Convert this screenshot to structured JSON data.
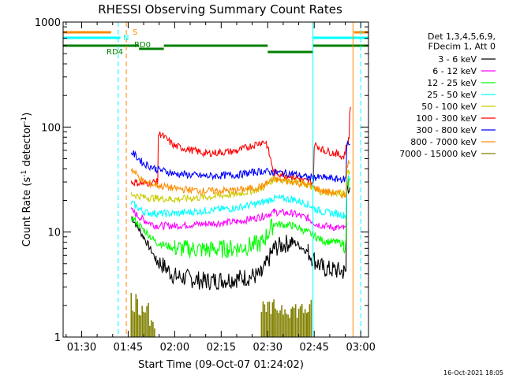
{
  "chart_data": {
    "type": "line",
    "title": "RHESSI Observing Summary Count Rates",
    "xlabel": "Start Time (09-Oct-07 01:24:02)",
    "ylabel_main": "Count Rate (s",
    "ylabel_sup1": "-1",
    "ylabel_mid": " detector",
    "ylabel_sup2": "-1",
    "ylabel_end": ")",
    "y_scale": "log",
    "ylim": [
      1,
      1000
    ],
    "xlim_minutes": [
      84.03,
      182.5
    ],
    "x_ticks": [
      {
        "m": 90,
        "label": "01:30"
      },
      {
        "m": 105,
        "label": "01:45"
      },
      {
        "m": 120,
        "label": "02:00"
      },
      {
        "m": 135,
        "label": "02:15"
      },
      {
        "m": 150,
        "label": "02:30"
      },
      {
        "m": 165,
        "label": "02:45"
      },
      {
        "m": 180,
        "label": "03:00"
      }
    ],
    "y_ticks": [
      {
        "v": 1,
        "label": "1"
      },
      {
        "v": 10,
        "label": "10"
      },
      {
        "v": 100,
        "label": "100"
      },
      {
        "v": 1000,
        "label": "1000"
      }
    ],
    "legend_header": [
      "Det 1,3,4,5,6,9,",
      "FDecim 1, Att 0"
    ],
    "legend_position": "right",
    "series": [
      {
        "name": "3 - 6 keV",
        "color": "#000000",
        "x": [
          106,
          110,
          114,
          120,
          130,
          140,
          148,
          152,
          158,
          163,
          165.5,
          168,
          172,
          174.5,
          176.5
        ],
        "y": [
          14,
          9,
          5.5,
          3.8,
          3.4,
          3.6,
          3.9,
          7,
          8.2,
          6.5,
          5.2,
          4.5,
          4.3,
          4.2,
          28
        ]
      },
      {
        "name": "6 - 12 keV",
        "color": "#ff00ff",
        "x": [
          106,
          110,
          114,
          120,
          130,
          140,
          148,
          152,
          158,
          163,
          165.5,
          168,
          172,
          174.5,
          176.5
        ],
        "y": [
          16,
          13,
          11.5,
          11.5,
          12,
          12.5,
          14,
          15.5,
          15,
          13.5,
          12,
          11.5,
          11,
          10.8,
          30
        ]
      },
      {
        "name": "12 - 25 keV",
        "color": "#00ff00",
        "x": [
          106,
          110,
          114,
          120,
          130,
          140,
          148,
          152,
          158,
          163,
          165.5,
          168,
          172,
          174.5,
          176.5
        ],
        "y": [
          14,
          10.5,
          8,
          7,
          6.8,
          7,
          7.8,
          12,
          11.5,
          10,
          9,
          8.2,
          8,
          7.8,
          28
        ]
      },
      {
        "name": "25 - 50 keV",
        "color": "#00ffff",
        "x": [
          106,
          110,
          114,
          120,
          130,
          140,
          148,
          152,
          158,
          163,
          165.5,
          168,
          172,
          174.5,
          176.5
        ],
        "y": [
          19,
          15.5,
          15,
          15,
          16,
          17,
          19,
          21,
          20.5,
          18.5,
          16.5,
          15.5,
          15,
          14.5,
          32
        ]
      },
      {
        "name": "50 - 100 keV",
        "color": "#cccc00",
        "x": [
          106,
          110,
          114,
          120,
          130,
          140,
          148,
          152,
          158,
          163,
          165.5,
          168,
          172,
          174.5,
          176.5
        ],
        "y": [
          23,
          21.5,
          21,
          20.5,
          21.5,
          23,
          26,
          32,
          31,
          28,
          25,
          24,
          23.5,
          23,
          38
        ]
      },
      {
        "name": "100 - 300 keV",
        "color": "#ff0000",
        "x": [
          106,
          110,
          114,
          115.5,
          120,
          130,
          140,
          148,
          149.5,
          152,
          158,
          163,
          164.5,
          165.5,
          168,
          172,
          174.5,
          176,
          176.7
        ],
        "y": [
          30,
          29,
          30,
          85,
          66,
          56,
          59,
          72,
          72,
          37,
          34,
          30,
          30,
          68,
          60,
          56,
          52,
          75,
          150
        ]
      },
      {
        "name": "300 - 800 keV",
        "color": "#0000ff",
        "x": [
          106,
          110,
          114,
          120,
          130,
          140,
          148,
          152,
          158,
          163,
          165.5,
          168,
          172,
          174.5,
          176.5
        ],
        "y": [
          58,
          45,
          40,
          36,
          34,
          35,
          38,
          37,
          36,
          33,
          33,
          33,
          32,
          32,
          70
        ]
      },
      {
        "name": "800 - 7000 keV",
        "color": "#ff8c00",
        "x": [
          106,
          110,
          114,
          120,
          130,
          140,
          148,
          152,
          158,
          163,
          165.5,
          168,
          172,
          174.5,
          176.5
        ],
        "y": [
          40,
          30,
          28,
          26,
          24.5,
          25,
          27,
          32,
          30,
          28,
          26,
          24.5,
          23.5,
          22.5,
          45
        ]
      },
      {
        "name": "7000 - 15000 keV",
        "color": "#808000",
        "x": [
          106,
          108,
          110,
          112,
          114,
          130,
          140,
          148,
          152,
          158,
          163,
          164.5
        ],
        "y": [
          2.8,
          2.4,
          2.6,
          1.5,
          1,
          1,
          1,
          2.2,
          2.3,
          2.2,
          2.3,
          1
        ]
      }
    ],
    "flag_labels": {
      "saa": "S",
      "night": "N",
      "rd4": "RD4",
      "rd0": "RD0"
    },
    "flag_colors": {
      "saa": "#ff8c00",
      "night": "#00ffff",
      "decim": "#008000"
    },
    "flag_bars": {
      "saa": [
        [
          84.03,
          99.5
        ],
        [
          177.8,
          182.5
        ]
      ],
      "night": [
        [
          84.03,
          102.5
        ],
        [
          164.5,
          182.5
        ]
      ],
      "decim": [
        {
          "x": [
            84.03,
            108.5
          ],
          "level": 0
        },
        {
          "x": [
            108.5,
            116.5
          ],
          "level": 1
        },
        {
          "x": [
            116.5,
            150
          ],
          "level": 0
        },
        {
          "x": [
            150,
            164.5
          ],
          "level": -1
        },
        {
          "x": [
            164.5,
            182.5
          ],
          "level": 0
        }
      ]
    },
    "vlines": [
      {
        "m": 101.8,
        "color": "#00ffff",
        "dash": true
      },
      {
        "m": 104.4,
        "color": "#ff8c00",
        "dash": true
      },
      {
        "m": 164.6,
        "color": "#00ffff",
        "dash": false
      },
      {
        "m": 177.5,
        "color": "#ff8c00",
        "dash": false
      },
      {
        "m": 180.0,
        "color": "#00ffff",
        "dash": true
      }
    ],
    "timestamp": "16-Oct-2021 18:05"
  }
}
